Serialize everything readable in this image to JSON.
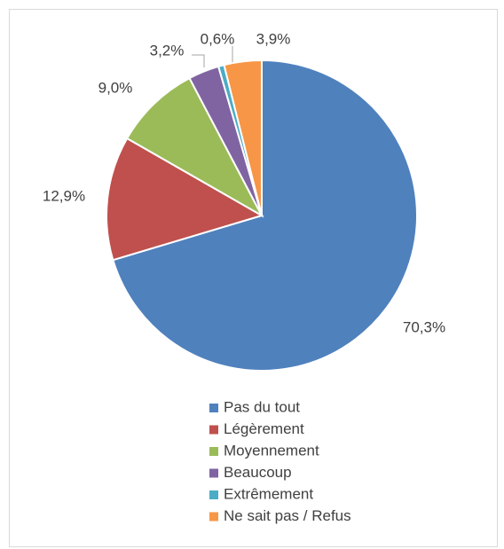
{
  "chart_data": {
    "type": "pie",
    "categories": [
      "Pas du tout",
      "Légèrement",
      "Moyennement",
      "Beaucoup",
      "Extrêmement",
      "Ne sait pas / Refus"
    ],
    "values": [
      70.3,
      12.9,
      9.0,
      3.2,
      0.6,
      3.9
    ],
    "value_labels": [
      "70,3%",
      "12,9%",
      "9,0%",
      "3,2%",
      "0,6%",
      "3,9%"
    ],
    "colors": [
      "#4f81bd",
      "#c0504d",
      "#9bbb59",
      "#8064a2",
      "#4bacc6",
      "#f79646"
    ],
    "legend": "bottom"
  }
}
